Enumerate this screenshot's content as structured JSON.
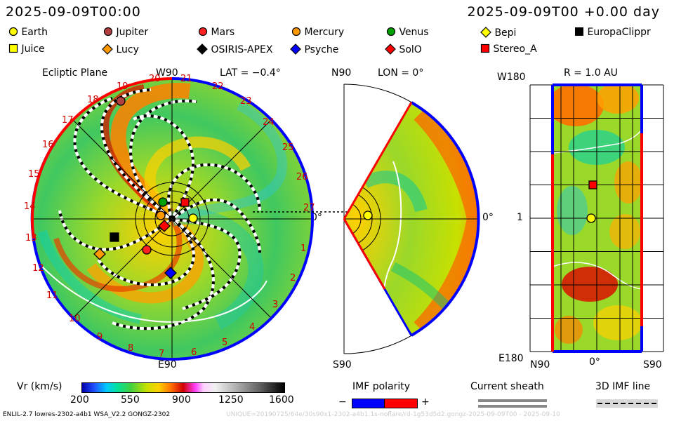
{
  "header": {
    "datetime_left": "2025-09-09T00:00",
    "datetime_right": "2025-09-09T00 +0.00 day"
  },
  "legend": [
    {
      "name": "Earth",
      "marker": "circle",
      "color": "#ffff00"
    },
    {
      "name": "Jupiter",
      "marker": "circle",
      "color": "#b24040"
    },
    {
      "name": "Mars",
      "marker": "circle",
      "color": "#ff2020"
    },
    {
      "name": "Mercury",
      "marker": "circle",
      "color": "#ff9900"
    },
    {
      "name": "Venus",
      "marker": "circle",
      "color": "#00a000"
    },
    {
      "name": "Bepi",
      "marker": "diamond",
      "color": "#ffff00"
    },
    {
      "name": "EuropaClippr",
      "marker": "square",
      "color": "#000000"
    },
    {
      "name": "Juice",
      "marker": "square",
      "color": "#ffff00"
    },
    {
      "name": "Lucy",
      "marker": "diamond",
      "color": "#ff9900"
    },
    {
      "name": "OSIRIS-APEX",
      "marker": "diamond",
      "color": "#000000"
    },
    {
      "name": "Psyche",
      "marker": "diamond",
      "color": "#0000ff"
    },
    {
      "name": "SolO",
      "marker": "diamond",
      "color": "#ff0000"
    },
    {
      "name": "Stereo_A",
      "marker": "square",
      "color": "#ff0000"
    }
  ],
  "panels": {
    "ecliptic": {
      "title": "Ecliptic Plane",
      "top_label": "W90",
      "lat": "LAT = −0.4°",
      "bottom_label": "E90",
      "right_label": "0°",
      "rim_numbers": [
        "20",
        "21",
        "22",
        "23",
        "24",
        "25",
        "26",
        "27",
        "1",
        "2",
        "3",
        "4",
        "5",
        "6",
        "7",
        "8",
        "9",
        "10",
        "11",
        "12",
        "13",
        "14",
        "15",
        "16",
        "17",
        "18",
        "19"
      ]
    },
    "meridional": {
      "top_label": "N90",
      "lon": "LON = 0°",
      "bottom_label": "S90",
      "right_label": "0°"
    },
    "surface": {
      "top_left": "W180",
      "title": "R = 1.0 AU",
      "left_mid": "1",
      "bottom_left": "E180",
      "x_left": "N90",
      "x_mid": "0°",
      "x_right": "S90"
    }
  },
  "colorbar": {
    "label": "Vr (km/s)",
    "ticks": [
      "200",
      "550",
      "900",
      "1250",
      "1600"
    ]
  },
  "imf": {
    "title": "IMF polarity",
    "minus": "−",
    "plus": "+",
    "negative_color": "#0000ff",
    "positive_color": "#ff0000"
  },
  "sheath": {
    "title": "Current sheath"
  },
  "imfline": {
    "title": "3D IMF line"
  },
  "footer": {
    "model": "ENLIL-2.7 lowres-2302-a4b1 WSA_V2.2 GONGZ-2302",
    "faint": "UNIQUE=20190725/64e/30s90x1-2302-a4b1.1s-noflare/rd-1g53d5d2.gongz-2025-09-09T00 - 2025-09-10"
  },
  "chart_data": {
    "type": "heatmap",
    "title": "",
    "quantity": "Vr (km/s)",
    "colorbar_range": [
      200,
      1600
    ],
    "colorbar_ticks": [
      200,
      550,
      900,
      1250,
      1600
    ],
    "colormap": [
      "#0000aa",
      "#2050ff",
      "#00c8ff",
      "#00e0a0",
      "#40d040",
      "#c8e000",
      "#ffd000",
      "#ff7000",
      "#d00000",
      "#ff40ff",
      "#ffd0ff",
      "#f0f0f0",
      "#b0b0b0",
      "#606060",
      "#000000"
    ],
    "time": "2025-09-09T00 +0.00 day",
    "bodies_at_1AU_surface": [
      "Earth",
      "Stereo_A"
    ]
  }
}
